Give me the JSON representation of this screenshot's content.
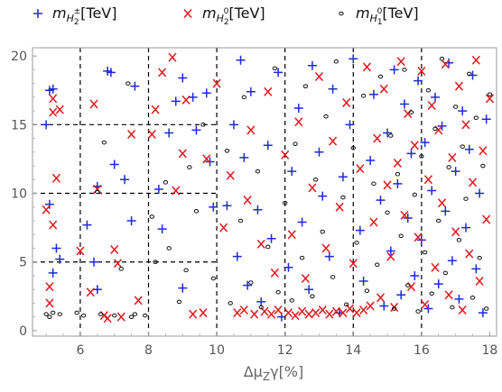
{
  "chart_data": {
    "type": "scatter",
    "title": "",
    "xlabel": "Δμ_Zγ[%]",
    "ylabel": "",
    "xlim": [
      4.6,
      18.2
    ],
    "ylim": [
      -0.4,
      20.6
    ],
    "x_ticks": [
      6,
      8,
      10,
      12,
      14,
      16,
      18
    ],
    "y_ticks": [
      0,
      5,
      10,
      15,
      20
    ],
    "grid": "dashed black lines at x = 6, 8, 10 and y = 5, 10, 15 spanning x ≤ 10; vertical dashed lines at x = 12, 14, 16",
    "legend_position": "top",
    "series": [
      {
        "name": "m_H2±[TeV]",
        "name_parts": {
          "base": "m",
          "sub": "H",
          "subsub": "2",
          "sup": "±",
          "unit": "[TeV]"
        },
        "marker": "plus",
        "color": "#1f2bd6",
        "points": [
          [
            5.0,
            15.0
          ],
          [
            5.1,
            17.5
          ],
          [
            5.2,
            17.6
          ],
          [
            5.1,
            9.2
          ],
          [
            5.3,
            6.0
          ],
          [
            5.2,
            4.2
          ],
          [
            5.4,
            5.2
          ],
          [
            6.2,
            7.7
          ],
          [
            6.4,
            5.0
          ],
          [
            6.5,
            3.0
          ],
          [
            6.5,
            10.5
          ],
          [
            6.8,
            18.9
          ],
          [
            6.9,
            18.8
          ],
          [
            7.0,
            12.1
          ],
          [
            7.3,
            11.0
          ],
          [
            7.5,
            8.0
          ],
          [
            7.6,
            17.8
          ],
          [
            8.3,
            10.3
          ],
          [
            8.4,
            7.4
          ],
          [
            8.6,
            14.4
          ],
          [
            8.8,
            16.7
          ],
          [
            9.0,
            3.1
          ],
          [
            9.0,
            18.4
          ],
          [
            9.3,
            17.0
          ],
          [
            9.4,
            14.6
          ],
          [
            9.7,
            17.3
          ],
          [
            9.8,
            12.3
          ],
          [
            9.9,
            9.0
          ],
          [
            10.3,
            9.1
          ],
          [
            10.5,
            15.0
          ],
          [
            10.6,
            5.4
          ],
          [
            10.7,
            19.7
          ],
          [
            10.8,
            12.6
          ],
          [
            10.9,
            3.3
          ],
          [
            11.0,
            17.4
          ],
          [
            11.2,
            8.8
          ],
          [
            11.3,
            2.1
          ],
          [
            11.5,
            13.5
          ],
          [
            11.6,
            6.7
          ],
          [
            11.8,
            18.8
          ],
          [
            11.9,
            1.0
          ],
          [
            12.1,
            4.6
          ],
          [
            12.2,
            11.6
          ],
          [
            12.4,
            16.2
          ],
          [
            12.5,
            7.9
          ],
          [
            12.7,
            3.0
          ],
          [
            12.8,
            19.3
          ],
          [
            13.0,
            13.0
          ],
          [
            13.1,
            9.8
          ],
          [
            13.3,
            5.4
          ],
          [
            13.4,
            17.6
          ],
          [
            13.6,
            1.3
          ],
          [
            13.7,
            11.2
          ],
          [
            13.9,
            15.0
          ],
          [
            14.0,
            19.8
          ],
          [
            14.2,
            7.3
          ],
          [
            14.3,
            3.6
          ],
          [
            14.5,
            12.4
          ],
          [
            14.6,
            17.2
          ],
          [
            14.8,
            9.5
          ],
          [
            14.9,
            1.8
          ],
          [
            15.0,
            14.4
          ],
          [
            15.1,
            5.8
          ],
          [
            15.2,
            19.0
          ],
          [
            15.3,
            10.7
          ],
          [
            15.4,
            2.6
          ],
          [
            15.5,
            16.5
          ],
          [
            15.6,
            8.2
          ],
          [
            15.7,
            12.9
          ],
          [
            15.8,
            4.0
          ],
          [
            15.9,
            18.2
          ],
          [
            16.0,
            6.6
          ],
          [
            16.1,
            13.7
          ],
          [
            16.2,
            1.6
          ],
          [
            16.3,
            10.2
          ],
          [
            16.4,
            17.0
          ],
          [
            16.5,
            3.4
          ],
          [
            16.6,
            14.9
          ],
          [
            16.7,
            8.7
          ],
          [
            16.8,
            19.5
          ],
          [
            16.9,
            5.1
          ],
          [
            17.0,
            11.6
          ],
          [
            17.1,
            2.3
          ],
          [
            17.2,
            16.0
          ],
          [
            17.3,
            7.5
          ],
          [
            17.4,
            13.2
          ],
          [
            17.5,
            18.6
          ],
          [
            17.6,
            4.5
          ],
          [
            17.7,
            10.0
          ],
          [
            17.8,
            1.3
          ],
          [
            17.9,
            15.4
          ]
        ]
      },
      {
        "name": "m_H2⁰[TeV]",
        "name_parts": {
          "base": "m",
          "sub": "H",
          "subsub": "2",
          "sup": "0",
          "unit": "[TeV]"
        },
        "marker": "cross",
        "color": "#e0191d",
        "points": [
          [
            5.0,
            8.8
          ],
          [
            5.1,
            3.2
          ],
          [
            5.1,
            2.0
          ],
          [
            5.2,
            7.7
          ],
          [
            5.2,
            16.9
          ],
          [
            5.2,
            15.9
          ],
          [
            5.3,
            11.1
          ],
          [
            5.4,
            16.1
          ],
          [
            6.0,
            5.8
          ],
          [
            6.3,
            2.8
          ],
          [
            6.4,
            16.5
          ],
          [
            6.5,
            10.3
          ],
          [
            6.7,
            1.1
          ],
          [
            6.8,
            0.9
          ],
          [
            7.0,
            5.9
          ],
          [
            7.1,
            4.9
          ],
          [
            7.2,
            1.0
          ],
          [
            7.5,
            14.3
          ],
          [
            7.7,
            2.2
          ],
          [
            8.1,
            14.3
          ],
          [
            8.2,
            16.1
          ],
          [
            8.4,
            18.8
          ],
          [
            8.7,
            19.9
          ],
          [
            8.8,
            10.2
          ],
          [
            9.0,
            12.9
          ],
          [
            9.1,
            16.8
          ],
          [
            9.3,
            1.2
          ],
          [
            9.6,
            1.3
          ],
          [
            9.7,
            12.5
          ],
          [
            10.0,
            18.0
          ],
          [
            10.2,
            7.5
          ],
          [
            10.4,
            11.3
          ],
          [
            10.6,
            1.3
          ],
          [
            10.8,
            1.5
          ],
          [
            10.9,
            9.5
          ],
          [
            11.0,
            14.6
          ],
          [
            11.1,
            1.2
          ],
          [
            11.3,
            6.3
          ],
          [
            11.4,
            1.4
          ],
          [
            11.5,
            17.4
          ],
          [
            11.6,
            1.2
          ],
          [
            11.7,
            4.2
          ],
          [
            11.8,
            1.5
          ],
          [
            12.0,
            12.8
          ],
          [
            12.1,
            1.3
          ],
          [
            12.2,
            7.0
          ],
          [
            12.3,
            1.1
          ],
          [
            12.4,
            15.2
          ],
          [
            12.5,
            1.4
          ],
          [
            12.6,
            3.8
          ],
          [
            12.7,
            1.2
          ],
          [
            12.8,
            10.4
          ],
          [
            12.9,
            1.3
          ],
          [
            13.0,
            18.5
          ],
          [
            13.1,
            1.5
          ],
          [
            13.2,
            6.0
          ],
          [
            13.3,
            1.2
          ],
          [
            13.4,
            13.8
          ],
          [
            13.5,
            1.4
          ],
          [
            13.6,
            9.0
          ],
          [
            13.7,
            1.3
          ],
          [
            13.8,
            16.6
          ],
          [
            13.9,
            1.6
          ],
          [
            14.0,
            4.9
          ],
          [
            14.1,
            1.3
          ],
          [
            14.2,
            11.8
          ],
          [
            14.3,
            1.5
          ],
          [
            14.4,
            19.2
          ],
          [
            14.5,
            1.8
          ],
          [
            14.6,
            7.9
          ],
          [
            14.7,
            14.0
          ],
          [
            14.8,
            2.4
          ],
          [
            14.9,
            17.6
          ],
          [
            15.0,
            10.6
          ],
          [
            15.1,
            5.4
          ],
          [
            15.2,
            1.7
          ],
          [
            15.3,
            12.2
          ],
          [
            15.4,
            19.6
          ],
          [
            15.5,
            8.4
          ],
          [
            15.6,
            15.8
          ],
          [
            15.7,
            3.2
          ],
          [
            15.8,
            13.5
          ],
          [
            15.9,
            6.8
          ],
          [
            16.0,
            18.9
          ],
          [
            16.1,
            1.9
          ],
          [
            16.2,
            11.0
          ],
          [
            16.3,
            16.4
          ],
          [
            16.4,
            4.6
          ],
          [
            16.5,
            14.6
          ],
          [
            16.6,
            9.3
          ],
          [
            16.7,
            19.4
          ],
          [
            16.8,
            2.6
          ],
          [
            16.9,
            12.6
          ],
          [
            17.0,
            7.2
          ],
          [
            17.1,
            17.8
          ],
          [
            17.2,
            1.5
          ],
          [
            17.3,
            15.0
          ],
          [
            17.4,
            5.6
          ],
          [
            17.5,
            10.8
          ],
          [
            17.6,
            19.7
          ],
          [
            17.7,
            3.6
          ],
          [
            17.8,
            13.1
          ],
          [
            17.9,
            8.1
          ],
          [
            18.0,
            16.9
          ]
        ]
      },
      {
        "name": "m_H1⁰[TeV]",
        "name_parts": {
          "base": "m",
          "sub": "H",
          "subsub": "1",
          "sup": "0",
          "unit": "[TeV]"
        },
        "marker": "circle",
        "color": "#111111",
        "points": [
          [
            5.0,
            1.2
          ],
          [
            5.1,
            1.0
          ],
          [
            5.2,
            1.3
          ],
          [
            5.4,
            1.2
          ],
          [
            5.9,
            1.3
          ],
          [
            6.1,
            1.1
          ],
          [
            6.5,
            10.1
          ],
          [
            6.6,
            1.2
          ],
          [
            6.7,
            13.7
          ],
          [
            7.0,
            1.1
          ],
          [
            7.2,
            4.5
          ],
          [
            7.4,
            18.0
          ],
          [
            7.5,
            1.0
          ],
          [
            7.6,
            1.2
          ],
          [
            7.9,
            1.1
          ],
          [
            8.1,
            8.3
          ],
          [
            8.2,
            5.0
          ],
          [
            8.5,
            10.8
          ],
          [
            8.6,
            6.0
          ],
          [
            8.9,
            2.1
          ],
          [
            9.1,
            4.4
          ],
          [
            9.2,
            11.9
          ],
          [
            9.4,
            8.7
          ],
          [
            9.6,
            15.0
          ],
          [
            9.9,
            3.8
          ],
          [
            10.3,
            13.1
          ],
          [
            10.4,
            2.0
          ],
          [
            10.7,
            8.0
          ],
          [
            10.8,
            17.0
          ],
          [
            11.0,
            3.5
          ],
          [
            11.2,
            11.6
          ],
          [
            11.3,
            1.7
          ],
          [
            11.5,
            6.1
          ],
          [
            11.7,
            19.1
          ],
          [
            11.8,
            2.8
          ],
          [
            12.0,
            9.3
          ],
          [
            12.2,
            2.2
          ],
          [
            12.3,
            13.6
          ],
          [
            12.5,
            5.3
          ],
          [
            12.6,
            17.8
          ],
          [
            12.8,
            2.5
          ],
          [
            12.9,
            11.0
          ],
          [
            13.1,
            7.2
          ],
          [
            13.2,
            15.6
          ],
          [
            13.4,
            3.9
          ],
          [
            13.5,
            19.6
          ],
          [
            13.7,
            9.7
          ],
          [
            13.8,
            1.9
          ],
          [
            14.0,
            13.3
          ],
          [
            14.1,
            6.4
          ],
          [
            14.3,
            17.1
          ],
          [
            14.4,
            2.9
          ],
          [
            14.6,
            10.7
          ],
          [
            14.7,
            4.8
          ],
          [
            14.8,
            18.5
          ],
          [
            15.0,
            8.6
          ],
          [
            15.1,
            14.2
          ],
          [
            15.2,
            1.6
          ],
          [
            15.3,
            11.4
          ],
          [
            15.4,
            6.9
          ],
          [
            15.5,
            19.0
          ],
          [
            15.6,
            3.3
          ],
          [
            15.7,
            15.9
          ],
          [
            15.8,
            9.9
          ],
          [
            15.9,
            1.4
          ],
          [
            16.0,
            12.7
          ],
          [
            16.1,
            5.7
          ],
          [
            16.2,
            17.5
          ],
          [
            16.3,
            2.7
          ],
          [
            16.4,
            14.7
          ],
          [
            16.5,
            8.0
          ],
          [
            16.6,
            19.8
          ],
          [
            16.7,
            4.2
          ],
          [
            16.8,
            11.9
          ],
          [
            16.9,
            1.7
          ],
          [
            17.0,
            16.3
          ],
          [
            17.1,
            6.6
          ],
          [
            17.2,
            13.4
          ],
          [
            17.3,
            9.6
          ],
          [
            17.4,
            18.7
          ],
          [
            17.5,
            2.4
          ],
          [
            17.6,
            15.5
          ],
          [
            17.7,
            5.3
          ],
          [
            17.8,
            12.0
          ],
          [
            17.9,
            1.6
          ],
          [
            18.0,
            17.2
          ]
        ]
      }
    ]
  }
}
